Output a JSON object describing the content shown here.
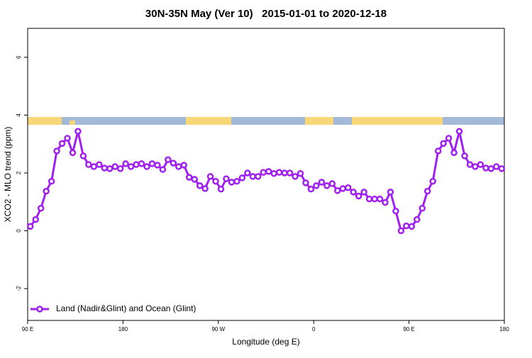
{
  "chart_data": {
    "type": "line",
    "title": "30N-35N May (Ver 10)   2015-01-01 to 2020-12-18",
    "xlabel": "Longitude (deg E)",
    "ylabel": "XCO2 - MLO trend (ppm)",
    "x": [
      92.5,
      97.5,
      102.5,
      107.5,
      112.5,
      117.5,
      122.5,
      127.5,
      132.5,
      137.5,
      142.5,
      147.5,
      152.5,
      157.5,
      162.5,
      167.5,
      172.5,
      177.5,
      182.5,
      187.5,
      192.5,
      197.5,
      202.5,
      207.5,
      212.5,
      217.5,
      222.5,
      227.5,
      232.5,
      237.5,
      242.5,
      247.5,
      252.5,
      257.5,
      262.5,
      267.5,
      272.5,
      277.5,
      282.5,
      287.5,
      292.5,
      297.5,
      302.5,
      307.5,
      312.5,
      317.5,
      322.5,
      327.5,
      332.5,
      337.5,
      342.5,
      347.5,
      352.5,
      357.5,
      362.5,
      367.5,
      372.5,
      377.5,
      382.5,
      387.5,
      392.5,
      397.5,
      402.5,
      407.5,
      412.5,
      417.5,
      422.5,
      427.5,
      432.5,
      437.5,
      442.5,
      447.5,
      452.5,
      457.5,
      462.5,
      467.5,
      472.5,
      477.5,
      482.5,
      487.5,
      492.5,
      497.5,
      502.5,
      507.5,
      512.5,
      517.5,
      522.5,
      527.5,
      532.5,
      537.5
    ],
    "series": [
      {
        "name": "Land (Nadir&Glint) and Ocean (Glint)",
        "color": "#a020f0",
        "values": [
          0.15,
          0.39,
          0.78,
          1.37,
          1.71,
          2.76,
          3.02,
          3.2,
          2.7,
          3.44,
          2.59,
          2.29,
          2.22,
          2.29,
          2.17,
          2.15,
          2.22,
          2.15,
          2.32,
          2.22,
          2.29,
          2.32,
          2.22,
          2.32,
          2.27,
          2.12,
          2.46,
          2.34,
          2.22,
          2.27,
          1.85,
          1.78,
          1.56,
          1.46,
          1.88,
          1.71,
          1.44,
          1.8,
          1.68,
          1.71,
          1.83,
          2.0,
          1.88,
          1.88,
          2.02,
          2.05,
          1.98,
          2.02,
          2.0,
          2.0,
          1.88,
          1.98,
          1.66,
          1.44,
          1.56,
          1.68,
          1.56,
          1.63,
          1.39,
          1.46,
          1.49,
          1.34,
          1.2,
          1.34,
          1.1,
          1.1,
          1.1,
          0.98,
          1.34,
          0.68,
          0.0,
          0.17,
          0.15,
          0.39,
          0.78,
          1.37,
          1.71,
          2.76,
          3.02,
          3.2,
          2.7,
          3.44,
          2.59,
          2.29,
          2.22,
          2.29,
          2.17,
          2.15,
          2.22,
          2.15
        ]
      }
    ],
    "xlim": [
      90,
      540
    ],
    "ylim": [
      -3.1,
      7.0
    ],
    "xticks": [
      {
        "value": 90,
        "label": "90 E"
      },
      180,
      {
        "value": 270,
        "label": "90 W"
      },
      {
        "value": 360,
        "label": "0"
      },
      {
        "value": 450,
        "label": "90 E"
      },
      {
        "value": 540,
        "label": "180"
      }
    ],
    "yticks": [
      -2,
      0,
      2,
      4,
      6
    ],
    "legend": "bottom-left"
  }
}
